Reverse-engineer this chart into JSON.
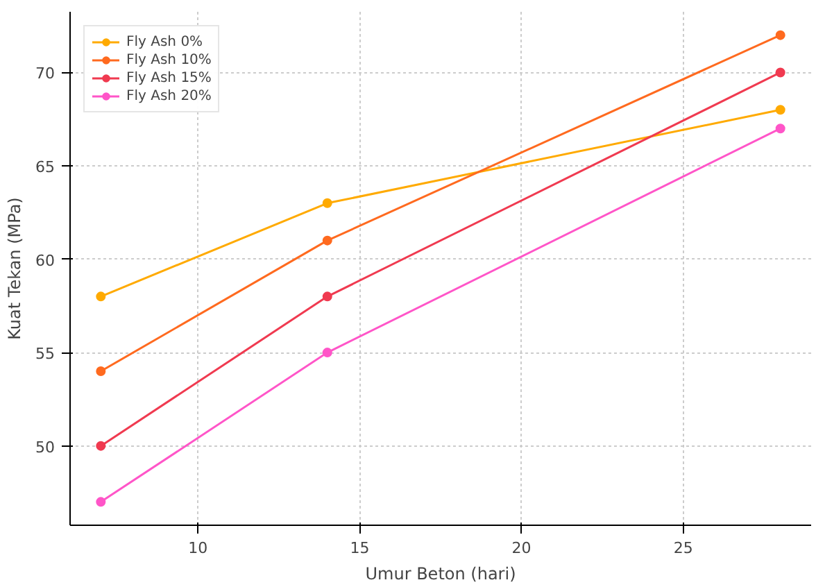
{
  "chart_data": {
    "type": "line",
    "xlabel": "Umur Beton (hari)",
    "ylabel": "Kuat Tekan (MPa)",
    "x": [
      7,
      14,
      28
    ],
    "series": [
      {
        "name": "Fly Ash 0%",
        "color": "#ffaa00",
        "values": [
          58,
          63,
          68
        ]
      },
      {
        "name": "Fly Ash 10%",
        "color": "#ff6a1f",
        "values": [
          54,
          61,
          72
        ]
      },
      {
        "name": "Fly Ash 15%",
        "color": "#f03a50",
        "values": [
          50,
          58,
          70
        ]
      },
      {
        "name": "Fly Ash 20%",
        "color": "#ff55c8",
        "values": [
          47,
          55,
          67
        ]
      }
    ],
    "xlim": [
      6.05,
      28.95
    ],
    "ylim": [
      45.75,
      73.25
    ],
    "xticks": [
      10,
      15,
      20,
      25
    ],
    "yticks": [
      50,
      55,
      60,
      65,
      70
    ],
    "grid": true,
    "legend": "top left",
    "marker": "circle",
    "line_style": "solid"
  }
}
